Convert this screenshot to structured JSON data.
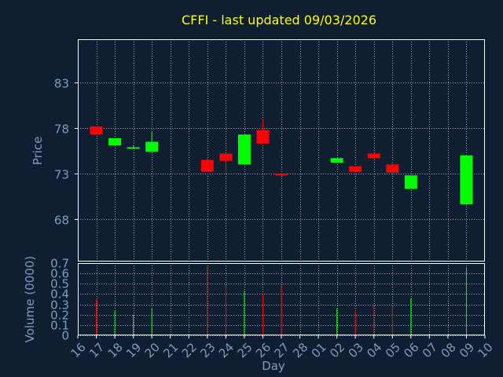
{
  "chart_data": {
    "type": "candlestick",
    "title": "CFFI - last updated 09/03/2026",
    "xlabel": "Day",
    "ylabel_price": "Price",
    "ylabel_volume": "Volume (0000)",
    "x_ticks": [
      "16",
      "17",
      "18",
      "19",
      "20",
      "21",
      "22",
      "23",
      "24",
      "25",
      "26",
      "27",
      "28",
      "01",
      "02",
      "03",
      "04",
      "05",
      "06",
      "07",
      "08",
      "09",
      "10"
    ],
    "price_ticks": [
      68,
      73,
      78,
      83
    ],
    "price_range": [
      63.3,
      87.8
    ],
    "volume_ticks": [
      "0",
      "0.1",
      "0.2",
      "0.3",
      "0.4",
      "0.5",
      "0.6",
      "0.7"
    ],
    "volume_range": [
      0,
      0.7
    ],
    "grid": true,
    "candles": [
      {
        "day": "17",
        "open": 78.2,
        "close": 77.3,
        "high": 78.2,
        "low": 77.3,
        "volume": 0.35
      },
      {
        "day": "18",
        "open": 76.1,
        "close": 76.9,
        "high": 76.9,
        "low": 76.1,
        "volume": 0.24
      },
      {
        "day": "19",
        "open": 75.8,
        "close": 75.9,
        "high": 76.1,
        "low": 75.7,
        "volume": 0.2
      },
      {
        "day": "20",
        "open": 75.4,
        "close": 76.5,
        "high": 77.6,
        "low": 75.4,
        "volume": 0.26
      },
      {
        "day": "23",
        "open": 74.5,
        "close": 73.2,
        "high": 74.7,
        "low": 73.2,
        "volume": 0.67
      },
      {
        "day": "24",
        "open": 75.2,
        "close": 74.4,
        "high": 75.2,
        "low": 73.1,
        "volume": 0.49
      },
      {
        "day": "25",
        "open": 74.0,
        "close": 77.3,
        "high": 77.3,
        "low": 74.0,
        "volume": 0.43
      },
      {
        "day": "26",
        "open": 77.8,
        "close": 76.3,
        "high": 78.9,
        "low": 76.3,
        "volume": 0.4
      },
      {
        "day": "27",
        "open": 73.0,
        "close": 72.8,
        "high": 73.1,
        "low": 72.8,
        "volume": 0.49
      },
      {
        "day": "02",
        "open": 74.2,
        "close": 74.7,
        "high": 74.7,
        "low": 74.2,
        "volume": 0.26
      },
      {
        "day": "03",
        "open": 73.8,
        "close": 73.2,
        "high": 73.8,
        "low": 73.2,
        "volume": 0.24
      },
      {
        "day": "04",
        "open": 75.2,
        "close": 74.7,
        "high": 75.2,
        "low": 74.7,
        "volume": 0.3
      },
      {
        "day": "05",
        "open": 74.0,
        "close": 73.1,
        "high": 74.3,
        "low": 73.1,
        "volume": 0.28
      },
      {
        "day": "06",
        "open": 71.3,
        "close": 72.8,
        "high": 72.8,
        "low": 71.3,
        "volume": 0.36
      },
      {
        "day": "09",
        "open": 69.6,
        "close": 75.0,
        "high": 75.0,
        "low": 69.6,
        "volume": 0.66
      }
    ],
    "colors": {
      "background": "#0f1e30",
      "plot_border": "#ffffff",
      "grid": "#9aa6b6",
      "title": "#ffff00",
      "axis_text": "#7d9cc0",
      "up": "#00ff00",
      "down": "#ff0000"
    }
  }
}
